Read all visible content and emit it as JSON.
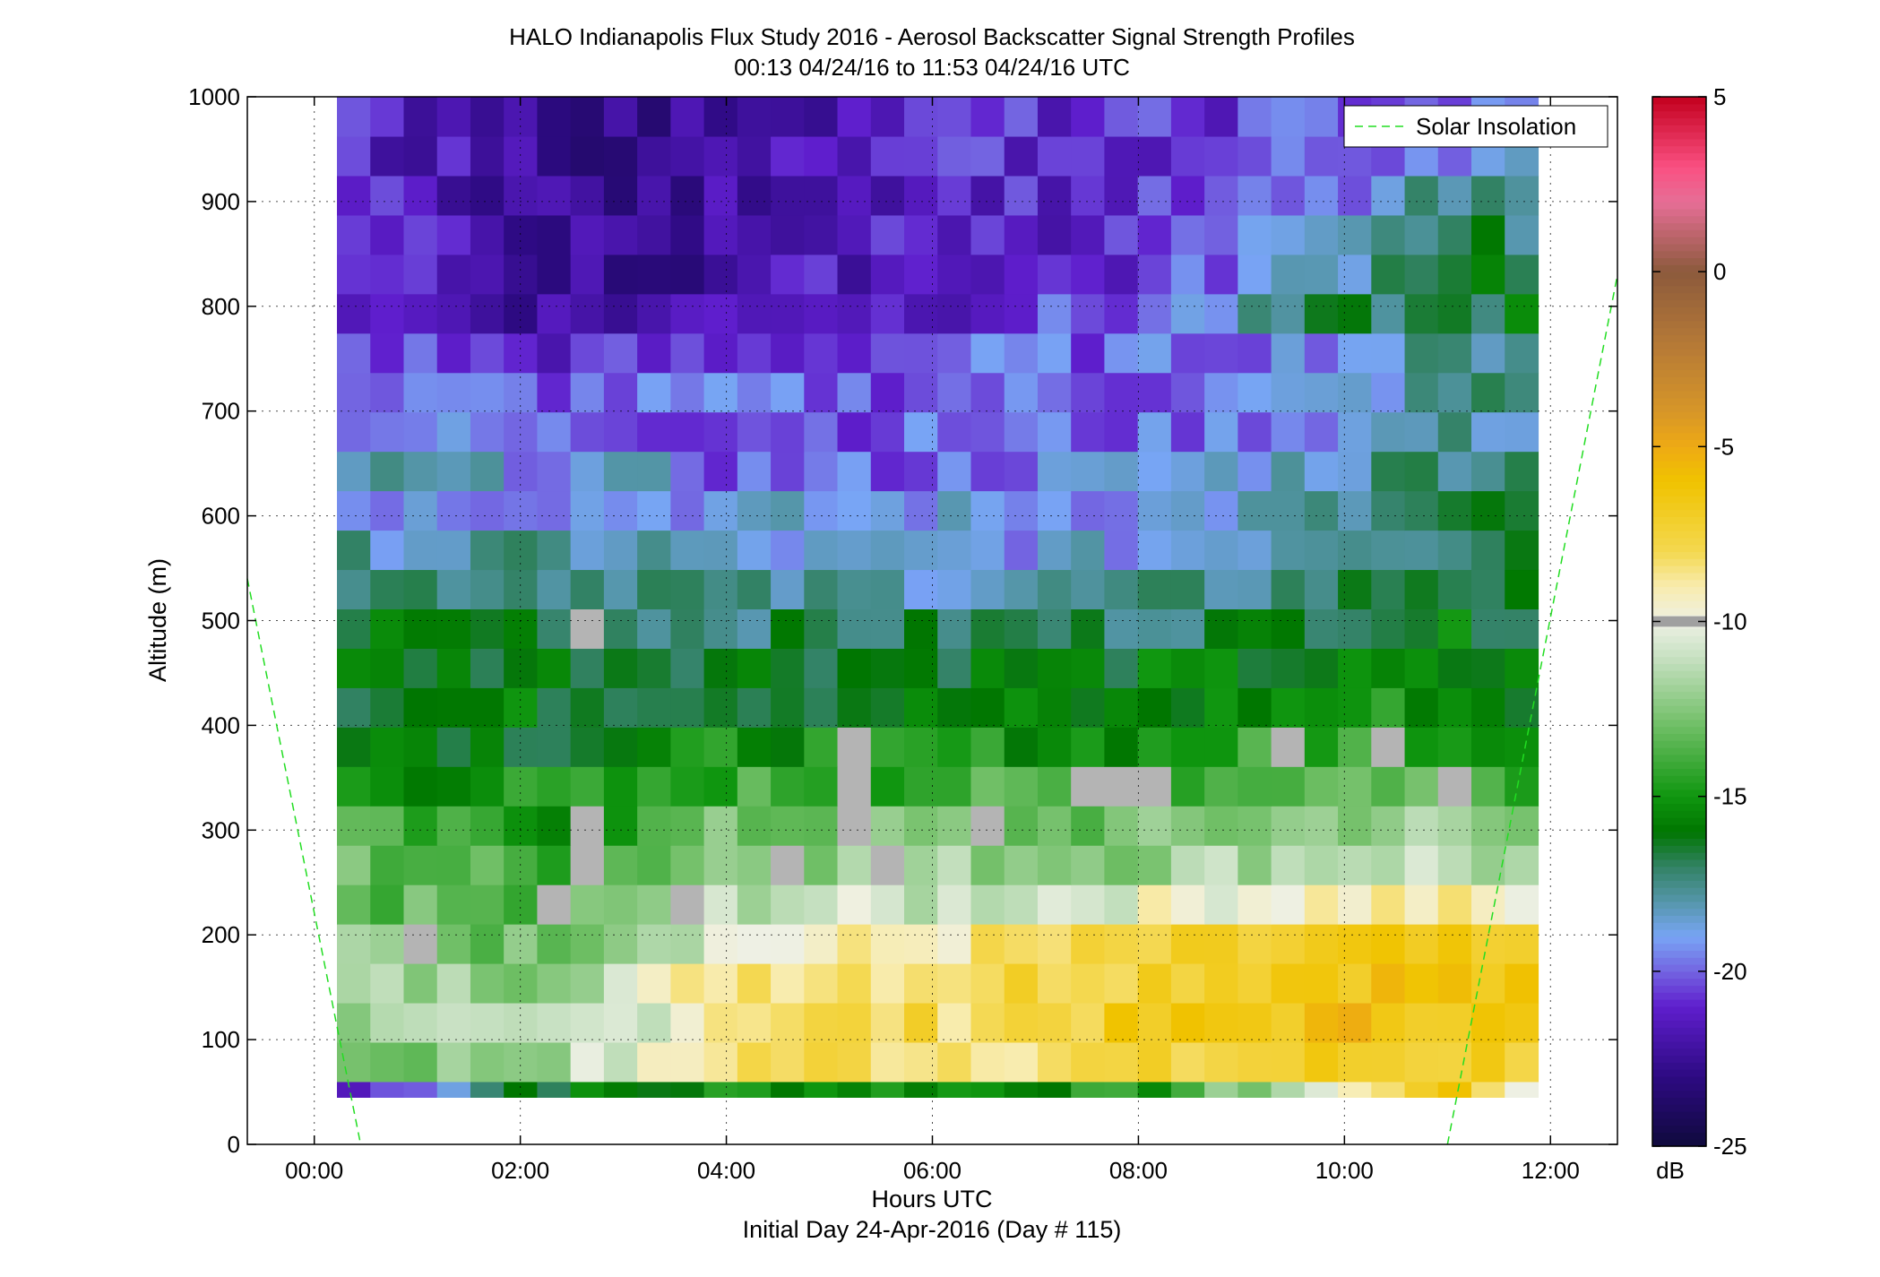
{
  "chart_data": {
    "type": "heatmap",
    "title": "HALO Indianapolis Flux Study 2016 - Aerosol Backscatter Signal Strength Profiles",
    "subtitle": "00:13 04/24/16 to 11:53 04/24/16  UTC",
    "xlabel": "Hours UTC",
    "xlabel2": "Initial Day 24-Apr-2016 (Day # 115)",
    "ylabel": "Altitude (m)",
    "xlim": [
      -0.65,
      12.65
    ],
    "ylim": [
      0,
      1000
    ],
    "x_ticks": [
      {
        "value": 0,
        "label": "00:00"
      },
      {
        "value": 2,
        "label": "02:00"
      },
      {
        "value": 4,
        "label": "04:00"
      },
      {
        "value": 6,
        "label": "06:00"
      },
      {
        "value": 8,
        "label": "08:00"
      },
      {
        "value": 10,
        "label": "10:00"
      },
      {
        "value": 12,
        "label": "12:00"
      }
    ],
    "y_ticks": [
      {
        "value": 0,
        "label": "0"
      },
      {
        "value": 100,
        "label": "100"
      },
      {
        "value": 200,
        "label": "200"
      },
      {
        "value": 300,
        "label": "300"
      },
      {
        "value": 400,
        "label": "400"
      },
      {
        "value": 500,
        "label": "500"
      },
      {
        "value": 600,
        "label": "600"
      },
      {
        "value": 700,
        "label": "700"
      },
      {
        "value": 800,
        "label": "800"
      },
      {
        "value": 900,
        "label": "900"
      },
      {
        "value": 1000,
        "label": "1000"
      }
    ],
    "grid": true,
    "legend_position": "top-right",
    "legend": [
      {
        "name": "Solar Insolation",
        "color": "#22dd22",
        "style": "dashed"
      }
    ],
    "solar_insolation_lines": [
      {
        "points": [
          [
            -0.65,
            540
          ],
          [
            0.45,
            0
          ]
        ]
      },
      {
        "points": [
          [
            11.0,
            0
          ],
          [
            12.65,
            830
          ]
        ]
      }
    ],
    "colorbar": {
      "label": "dB",
      "min": -25,
      "max": 5,
      "ticks": [
        {
          "value": 5,
          "label": "5"
        },
        {
          "value": 0,
          "label": "0"
        },
        {
          "value": -5,
          "label": "-5"
        },
        {
          "value": -10,
          "label": "-10"
        },
        {
          "value": -15,
          "label": "-15"
        },
        {
          "value": -20,
          "label": "-20"
        },
        {
          "value": -25,
          "label": "-25"
        }
      ]
    },
    "heatmap": {
      "x_start_hours": 0.22,
      "x_end_hours": 11.88,
      "y_bottom_m": 45,
      "y_top_m": 1000,
      "cols": 36,
      "rows": 26,
      "bottom_row_height_m": 15,
      "masked_color": "#b4b4b4",
      "masked_cells": [
        [
          4,
          2
        ],
        [
          5,
          6
        ],
        [
          6,
          13
        ],
        [
          12,
          7
        ],
        [
          6,
          7
        ],
        [
          7,
          7
        ],
        [
          6,
          16
        ],
        [
          7,
          15
        ],
        [
          5,
          10
        ],
        [
          8,
          15
        ],
        [
          9,
          15
        ],
        [
          7,
          19
        ],
        [
          8,
          22
        ],
        [
          8,
          23
        ],
        [
          8,
          24
        ],
        [
          9,
          28
        ],
        [
          9,
          31
        ],
        [
          8,
          33
        ]
      ],
      "profiles": [
        {
          "hour": 0.22,
          "alt": [
            -22,
            -13,
            -12,
            -12,
            -12,
            -13,
            -13,
            -14,
            -15,
            -15,
            -16,
            -16,
            -16,
            -17,
            -18,
            -19,
            -18,
            -19,
            -20,
            -20,
            -21,
            -21,
            -21,
            -21,
            -21,
            -21
          ]
        },
        {
          "hour": 2.0,
          "alt": [
            -16,
            -12,
            -12,
            -12,
            -13,
            -14,
            -14,
            -15,
            -15,
            -16,
            -16,
            -16,
            -16,
            -17,
            -18,
            -19,
            -19,
            -20,
            -20,
            -21,
            -22,
            -22,
            -22,
            -22,
            -22,
            -22
          ]
        },
        {
          "hour": 3.4,
          "alt": [
            -16,
            -10,
            -10,
            -10,
            -11,
            -12,
            -13,
            -14,
            -15,
            -16,
            -16,
            -16,
            -17,
            -17,
            -18,
            -19,
            -19,
            -20,
            -20,
            -21,
            -22,
            -23,
            -23,
            -23,
            -23,
            -23
          ]
        },
        {
          "hour": 4.0,
          "alt": [
            -15,
            -8,
            -8,
            -8,
            -10,
            -11,
            -12,
            -13,
            -14,
            -15,
            -16,
            -16,
            -17,
            -18,
            -19,
            -19,
            -20,
            -20,
            -20,
            -21,
            -21,
            -22,
            -22,
            -22,
            -22,
            -22
          ]
        },
        {
          "hour": 6.0,
          "alt": [
            -15,
            -8,
            -8,
            -8,
            -9,
            -11,
            -12,
            -13,
            -14,
            -15,
            -16,
            -16,
            -17,
            -18,
            -19,
            -19,
            -20,
            -20,
            -20,
            -20,
            -21,
            -21,
            -21,
            -21,
            -21,
            -21
          ]
        },
        {
          "hour": 8.0,
          "alt": [
            -15,
            -8,
            -7,
            -7,
            -8,
            -10,
            -12,
            -13,
            -14,
            -15,
            -16,
            -16,
            -17,
            -18,
            -19,
            -19,
            -19,
            -20,
            -20,
            -20,
            -20,
            -21,
            -21,
            -21,
            -21,
            -21
          ]
        },
        {
          "hour": 10.0,
          "alt": [
            -10,
            -7,
            -6,
            -6,
            -7,
            -9,
            -11,
            -12,
            -13,
            -14,
            -15,
            -16,
            -16,
            -17,
            -17,
            -18,
            -18,
            -19,
            -19,
            -19,
            -17,
            -18,
            -19,
            -20,
            -20,
            -20
          ]
        },
        {
          "hour": 10.8,
          "alt": [
            -6,
            -7,
            -6,
            -6,
            -7,
            -9,
            -11,
            -12,
            -13,
            -14,
            -15,
            -16,
            -16,
            -16,
            -17,
            -17,
            -17,
            -18,
            -18,
            -18,
            -17,
            -16,
            -17,
            -18,
            -19,
            -20
          ]
        },
        {
          "hour": 11.88,
          "alt": [
            -10,
            -7,
            -7,
            -7,
            -8,
            -10,
            -12,
            -13,
            -14,
            -15,
            -16,
            -16,
            -16,
            -17,
            -16,
            -17,
            -17,
            -18,
            -17,
            -17,
            -16,
            -16,
            -17,
            -18,
            -19,
            -20
          ]
        }
      ]
    }
  }
}
